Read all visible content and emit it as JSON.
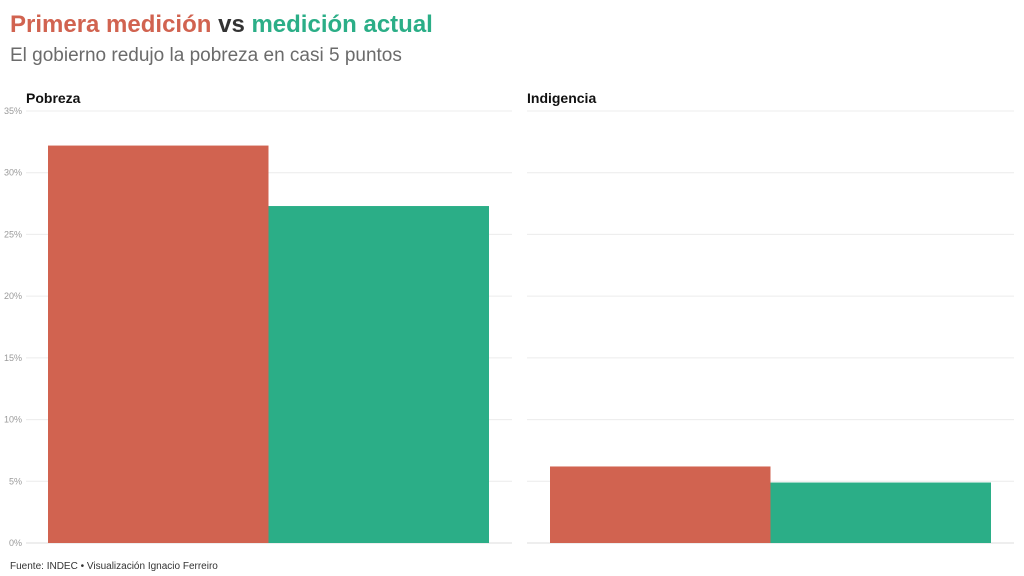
{
  "header": {
    "title_part1": "Primera medición",
    "title_part2": " vs ",
    "title_part3": "medición actual",
    "subtitle": "El gobierno redujo la pobreza en casi 5 puntos"
  },
  "colors": {
    "first": "#d16350",
    "current": "#2bae87",
    "title_middle": "#333333"
  },
  "chart_data": [
    {
      "type": "bar",
      "title": "Pobreza",
      "categories": [
        "Primera medición",
        "Medición actual"
      ],
      "values": [
        32.2,
        27.3
      ],
      "ylim": [
        0,
        35
      ],
      "yticks": [
        0,
        5,
        10,
        15,
        20,
        25,
        30,
        35
      ],
      "ytick_labels": [
        "0%",
        "5%",
        "10%",
        "15%",
        "20%",
        "25%",
        "30%",
        "35%"
      ],
      "show_y_labels": true,
      "grid": true
    },
    {
      "type": "bar",
      "title": "Indigencia",
      "categories": [
        "Primera medición",
        "Medición actual"
      ],
      "values": [
        6.2,
        4.9
      ],
      "ylim": [
        0,
        35
      ],
      "yticks": [
        0,
        5,
        10,
        15,
        20,
        25,
        30,
        35
      ],
      "ytick_labels": [
        "0%",
        "5%",
        "10%",
        "15%",
        "20%",
        "25%",
        "30%",
        "35%"
      ],
      "show_y_labels": false,
      "grid": true
    }
  ],
  "footer": {
    "source": "Fuente: INDEC • Visualización Ignacio Ferreiro"
  }
}
